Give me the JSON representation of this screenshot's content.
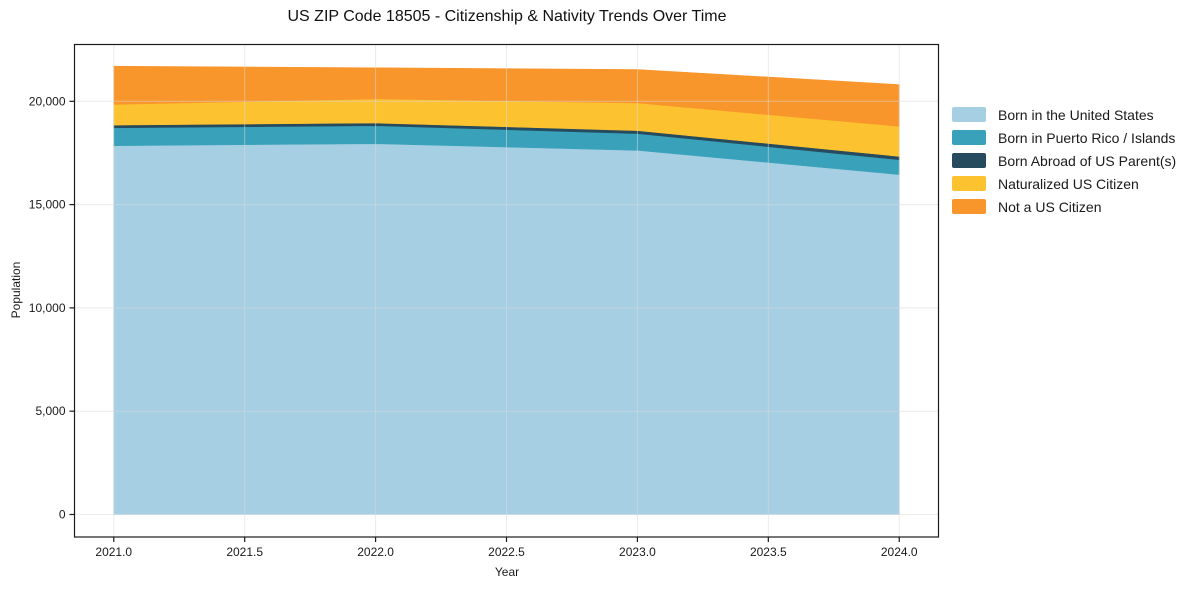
{
  "chart_data": {
    "type": "area",
    "stacked": true,
    "title": "US ZIP Code 18505 - Citizenship & Nativity Trends Over Time",
    "xlabel": "Year",
    "ylabel": "Population",
    "x": [
      2021,
      2022,
      2023,
      2024
    ],
    "series": [
      {
        "name": "Born in the United States",
        "color": "#A6CFE4",
        "values": [
          17850,
          17950,
          17630,
          16450
        ]
      },
      {
        "name": "Born in Puerto Rico / Islands",
        "color": "#39A2BA",
        "values": [
          870,
          870,
          805,
          725
        ]
      },
      {
        "name": "Born Abroad of US Parent(s)",
        "color": "#264B5E",
        "values": [
          130,
          130,
          145,
          160
        ]
      },
      {
        "name": "Naturalized US Citizen",
        "color": "#FDC230",
        "values": [
          1000,
          1165,
          1340,
          1455
        ]
      },
      {
        "name": "Not a US Citizen",
        "color": "#F8952B",
        "values": [
          1850,
          1505,
          1620,
          2020
        ]
      }
    ],
    "stacked_totals": [
      21700,
      21620,
      21540,
      20810
    ],
    "xticks": [
      2021.0,
      2021.5,
      2022.0,
      2022.5,
      2023.0,
      2023.5,
      2024.0
    ],
    "xtick_labels": [
      "2021.0",
      "2021.5",
      "2022.0",
      "2022.5",
      "2023.0",
      "2023.5",
      "2024.0"
    ],
    "yticks": [
      0,
      5000,
      10000,
      15000,
      20000
    ],
    "ytick_labels": [
      "0",
      "5,000",
      "10,000",
      "15,000",
      "20,000"
    ],
    "xlim": [
      2020.85,
      2024.15
    ],
    "ylim": [
      -1090,
      22750
    ],
    "grid": true,
    "legend_position": "right-outside",
    "colors": {
      "grid": "#d9d9d9",
      "spine": "#1a1a1a",
      "tick_text": "#1a1a1a",
      "background": "#ffffff"
    }
  }
}
